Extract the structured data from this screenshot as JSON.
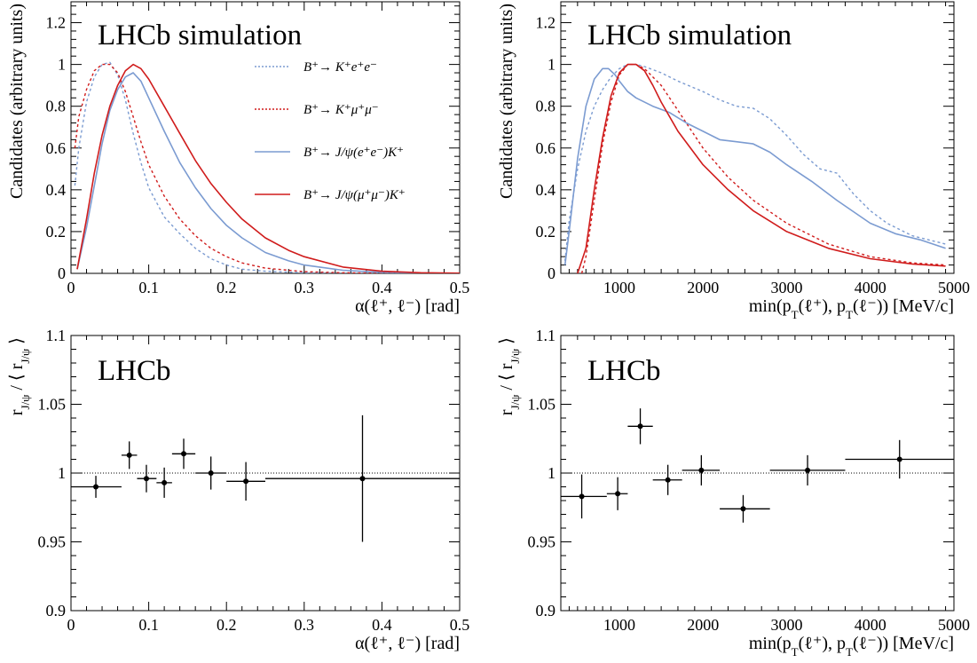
{
  "colors": {
    "axis": "#000000",
    "ee_mc": "#7b9bd1",
    "mumu_mc": "#d01c1c",
    "ee_jpsi": "#7b9bd1",
    "mumu_jpsi": "#d01c1c",
    "points": "#000000"
  },
  "chart_data": [
    {
      "id": "alpha_dist",
      "type": "line",
      "title": "LHCb simulation",
      "xlabel": "α(ℓ⁺, ℓ⁻) [rad]",
      "ylabel": "Candidates (arbitrary units)",
      "xlim": [
        0,
        0.5
      ],
      "ylim": [
        0,
        1.3
      ],
      "xticks": [
        0,
        0.1,
        0.2,
        0.3,
        0.4,
        0.5
      ],
      "xtick_labels": [
        "0",
        "0.1",
        "0.2",
        "0.3",
        "0.4",
        "0.5"
      ],
      "yticks": [
        0,
        0.2,
        0.4,
        0.6,
        0.8,
        1.0,
        1.2
      ],
      "ytick_labels": [
        "0",
        "0.2",
        "0.4",
        "0.6",
        "0.8",
        "1",
        "1.2"
      ],
      "grid": false,
      "legend_position": "top-right",
      "series": [
        {
          "name": "B⁺→ K⁺e⁺e⁻",
          "color": "#7b9bd1",
          "dashed": true,
          "x": [
            0.005,
            0.01,
            0.02,
            0.03,
            0.04,
            0.05,
            0.06,
            0.07,
            0.08,
            0.09,
            0.1,
            0.12,
            0.14,
            0.16,
            0.18,
            0.2,
            0.22,
            0.25,
            0.3,
            0.35,
            0.4,
            0.45,
            0.5
          ],
          "y": [
            0.42,
            0.6,
            0.82,
            0.94,
            1.0,
            1.01,
            0.95,
            0.83,
            0.67,
            0.53,
            0.41,
            0.27,
            0.19,
            0.12,
            0.07,
            0.04,
            0.02,
            0.01,
            0.003,
            0.001,
            0.0,
            0.0,
            0.0
          ]
        },
        {
          "name": "B⁺→ K⁺μ⁺μ⁻",
          "color": "#d01c1c",
          "dashed": true,
          "x": [
            0.005,
            0.01,
            0.02,
            0.03,
            0.04,
            0.05,
            0.06,
            0.07,
            0.08,
            0.09,
            0.1,
            0.12,
            0.14,
            0.16,
            0.18,
            0.2,
            0.22,
            0.25,
            0.3,
            0.35,
            0.4,
            0.45,
            0.5
          ],
          "y": [
            0.6,
            0.75,
            0.88,
            0.97,
            1.0,
            1.0,
            0.96,
            0.87,
            0.75,
            0.63,
            0.52,
            0.37,
            0.26,
            0.18,
            0.12,
            0.08,
            0.05,
            0.025,
            0.008,
            0.003,
            0.001,
            0.0,
            0.0
          ]
        },
        {
          "name": "B⁺→ J/ψ(e⁺e⁻)K⁺",
          "color": "#7b9bd1",
          "dashed": false,
          "x": [
            0.008,
            0.02,
            0.03,
            0.04,
            0.05,
            0.06,
            0.07,
            0.08,
            0.09,
            0.1,
            0.12,
            0.14,
            0.16,
            0.18,
            0.2,
            0.22,
            0.25,
            0.28,
            0.3,
            0.35,
            0.4,
            0.45,
            0.5
          ],
          "y": [
            0.02,
            0.22,
            0.42,
            0.62,
            0.78,
            0.88,
            0.94,
            0.96,
            0.92,
            0.84,
            0.68,
            0.53,
            0.41,
            0.31,
            0.23,
            0.17,
            0.1,
            0.06,
            0.04,
            0.015,
            0.005,
            0.002,
            0.0
          ]
        },
        {
          "name": "B⁺→ J/ψ(μ⁺μ⁻)K⁺",
          "color": "#d01c1c",
          "dashed": false,
          "x": [
            0.008,
            0.02,
            0.03,
            0.04,
            0.05,
            0.06,
            0.07,
            0.08,
            0.09,
            0.1,
            0.12,
            0.14,
            0.16,
            0.18,
            0.2,
            0.22,
            0.25,
            0.28,
            0.3,
            0.35,
            0.4,
            0.45,
            0.5
          ],
          "y": [
            0.02,
            0.26,
            0.48,
            0.66,
            0.8,
            0.9,
            0.97,
            1.0,
            0.98,
            0.93,
            0.8,
            0.67,
            0.54,
            0.43,
            0.34,
            0.26,
            0.17,
            0.11,
            0.08,
            0.03,
            0.01,
            0.003,
            0.001
          ]
        }
      ]
    },
    {
      "id": "pt_dist",
      "type": "line",
      "title": "LHCb simulation",
      "xlabel": "min(p_T(ℓ⁺), p_T(ℓ⁻)) [MeV/c]",
      "ylabel": "Candidates (arbitrary units)",
      "xlim": [
        300,
        5000
      ],
      "ylim": [
        0,
        1.3
      ],
      "xticks": [
        1000,
        2000,
        3000,
        4000,
        5000
      ],
      "xtick_labels": [
        "1000",
        "2000",
        "3000",
        "4000",
        "5000"
      ],
      "yticks": [
        0,
        0.2,
        0.4,
        0.6,
        0.8,
        1.0,
        1.2
      ],
      "ytick_labels": [
        "0",
        "0.2",
        "0.4",
        "0.6",
        "0.8",
        "1",
        "1.2"
      ],
      "grid": false,
      "series": [
        {
          "name": "B⁺→ K⁺e⁺e⁻",
          "color": "#7b9bd1",
          "dashed": true,
          "x": [
            350,
            400,
            500,
            600,
            700,
            800,
            900,
            1000,
            1100,
            1200,
            1300,
            1500,
            1700,
            2000,
            2200,
            2400,
            2600,
            2800,
            3000,
            3200,
            3400,
            3600,
            3800,
            4000,
            4200,
            4500,
            4900
          ],
          "y": [
            0.06,
            0.25,
            0.5,
            0.68,
            0.8,
            0.88,
            0.94,
            0.98,
            1.0,
            1.0,
            0.99,
            0.96,
            0.92,
            0.87,
            0.83,
            0.8,
            0.79,
            0.74,
            0.66,
            0.57,
            0.5,
            0.48,
            0.38,
            0.3,
            0.24,
            0.18,
            0.14
          ]
        },
        {
          "name": "B⁺→ K⁺μ⁺μ⁻",
          "color": "#d01c1c",
          "dashed": true,
          "x": [
            550,
            600,
            700,
            800,
            900,
            1000,
            1100,
            1200,
            1300,
            1500,
            1700,
            2000,
            2300,
            2600,
            3000,
            3500,
            4000,
            4500,
            4900
          ],
          "y": [
            0.0,
            0.08,
            0.35,
            0.62,
            0.82,
            0.95,
            1.0,
            1.0,
            0.98,
            0.9,
            0.78,
            0.6,
            0.46,
            0.35,
            0.24,
            0.14,
            0.08,
            0.05,
            0.04
          ]
        },
        {
          "name": "B⁺→ J/ψ(e⁺e⁻)K⁺",
          "color": "#7b9bd1",
          "dashed": false,
          "x": [
            350,
            400,
            500,
            600,
            700,
            800,
            870,
            950,
            1000,
            1100,
            1200,
            1400,
            1600,
            1800,
            2000,
            2200,
            2400,
            2600,
            2800,
            3000,
            3300,
            3600,
            4000,
            4300,
            4600,
            4900
          ],
          "y": [
            0.04,
            0.2,
            0.55,
            0.8,
            0.93,
            0.98,
            0.98,
            0.95,
            0.92,
            0.87,
            0.84,
            0.8,
            0.77,
            0.72,
            0.68,
            0.64,
            0.63,
            0.62,
            0.58,
            0.52,
            0.44,
            0.35,
            0.24,
            0.19,
            0.16,
            0.12
          ]
        },
        {
          "name": "B⁺→ J/ψ(μ⁺μ⁻)K⁺",
          "color": "#d01c1c",
          "dashed": false,
          "x": [
            500,
            600,
            700,
            800,
            900,
            1000,
            1100,
            1200,
            1300,
            1400,
            1500,
            1700,
            2000,
            2300,
            2600,
            3000,
            3500,
            4000,
            4500,
            4900
          ],
          "y": [
            0.0,
            0.12,
            0.4,
            0.65,
            0.85,
            0.96,
            1.0,
            1.0,
            0.97,
            0.9,
            0.82,
            0.68,
            0.52,
            0.4,
            0.3,
            0.2,
            0.12,
            0.07,
            0.045,
            0.035
          ]
        }
      ]
    },
    {
      "id": "alpha_ratio",
      "type": "scatter",
      "title": "LHCb",
      "xlabel": "α(ℓ⁺, ℓ⁻) [rad]",
      "ylabel": "r_J/ψ / ⟨ r_J/ψ ⟩",
      "xlim": [
        0,
        0.5
      ],
      "ylim": [
        0.9,
        1.1
      ],
      "xticks": [
        0,
        0.1,
        0.2,
        0.3,
        0.4,
        0.5
      ],
      "xtick_labels": [
        "0",
        "0.1",
        "0.2",
        "0.3",
        "0.4",
        "0.5"
      ],
      "yticks": [
        0.9,
        0.95,
        1.0,
        1.05,
        1.1
      ],
      "ytick_labels": [
        "0.9",
        "0.95",
        "1",
        "1.05",
        "1.1"
      ],
      "reference_line": 1.0,
      "grid": false,
      "points": [
        {
          "x": 0.032,
          "xlo": 0.0,
          "xhi": 0.065,
          "y": 0.99,
          "err": 0.008
        },
        {
          "x": 0.075,
          "xlo": 0.065,
          "xhi": 0.085,
          "y": 1.013,
          "err": 0.01
        },
        {
          "x": 0.097,
          "xlo": 0.085,
          "xhi": 0.11,
          "y": 0.996,
          "err": 0.01
        },
        {
          "x": 0.12,
          "xlo": 0.11,
          "xhi": 0.13,
          "y": 0.993,
          "err": 0.011
        },
        {
          "x": 0.145,
          "xlo": 0.13,
          "xhi": 0.16,
          "y": 1.014,
          "err": 0.011
        },
        {
          "x": 0.18,
          "xlo": 0.16,
          "xhi": 0.2,
          "y": 1.0,
          "err": 0.012
        },
        {
          "x": 0.225,
          "xlo": 0.2,
          "xhi": 0.25,
          "y": 0.994,
          "err": 0.014
        },
        {
          "x": 0.375,
          "xlo": 0.25,
          "xhi": 0.5,
          "y": 0.996,
          "err": 0.046
        }
      ]
    },
    {
      "id": "pt_ratio",
      "type": "scatter",
      "title": "LHCb",
      "xlabel": "min(p_T(ℓ⁺), p_T(ℓ⁻)) [MeV/c]",
      "ylabel": "r_J/ψ / ⟨ r_J/ψ ⟩",
      "xlim": [
        300,
        5000
      ],
      "ylim": [
        0.9,
        1.1
      ],
      "xticks": [
        1000,
        2000,
        3000,
        4000,
        5000
      ],
      "xtick_labels": [
        "1000",
        "2000",
        "3000",
        "4000",
        "5000"
      ],
      "yticks": [
        0.9,
        0.95,
        1.0,
        1.05,
        1.1
      ],
      "ytick_labels": [
        "0.9",
        "0.95",
        "1",
        "1.05",
        "1.1"
      ],
      "reference_line": 1.0,
      "grid": false,
      "points": [
        {
          "x": 550,
          "xlo": 300,
          "xhi": 850,
          "y": 0.983,
          "err": 0.016
        },
        {
          "x": 980,
          "xlo": 850,
          "xhi": 1100,
          "y": 0.985,
          "err": 0.012
        },
        {
          "x": 1250,
          "xlo": 1100,
          "xhi": 1400,
          "y": 1.034,
          "err": 0.013
        },
        {
          "x": 1580,
          "xlo": 1400,
          "xhi": 1750,
          "y": 0.995,
          "err": 0.011
        },
        {
          "x": 1980,
          "xlo": 1750,
          "xhi": 2200,
          "y": 1.002,
          "err": 0.011
        },
        {
          "x": 2480,
          "xlo": 2200,
          "xhi": 2800,
          "y": 0.974,
          "err": 0.01
        },
        {
          "x": 3250,
          "xlo": 2800,
          "xhi": 3700,
          "y": 1.002,
          "err": 0.011
        },
        {
          "x": 4350,
          "xlo": 3700,
          "xhi": 5000,
          "y": 1.01,
          "err": 0.014
        }
      ]
    }
  ]
}
